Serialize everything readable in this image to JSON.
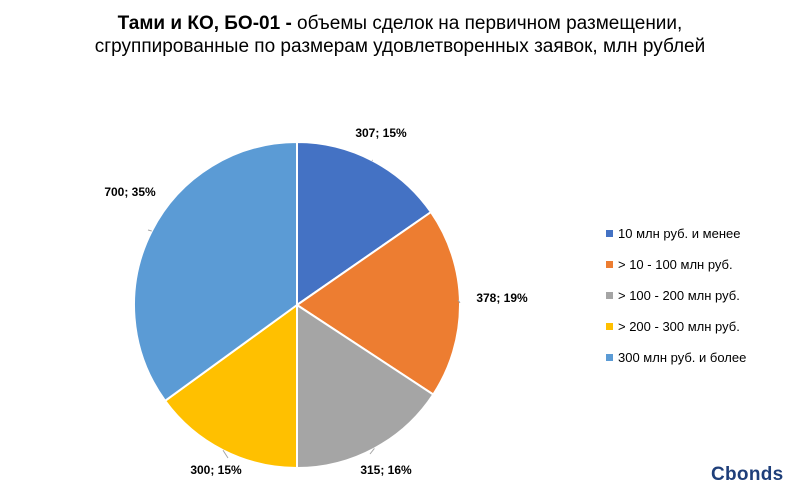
{
  "title": {
    "bold": "Тами и КО, БО-01 -",
    "line1_rest": " объемы сделок на первичном размещении,",
    "line2": "сгруппированные по размерам удовлетворенных заявок, млн рублей"
  },
  "brand": "Cbonds",
  "colors": [
    "#4472c4",
    "#ed7d31",
    "#a5a5a5",
    "#ffc000",
    "#5b9bd5"
  ],
  "chart_data": {
    "type": "pie",
    "categories": [
      "10 млн руб. и менее",
      "> 10 - 100 млн руб.",
      "> 100 - 200 млн руб.",
      "> 200 - 300 млн руб.",
      "300 млн руб. и более"
    ],
    "values": [
      307,
      378,
      315,
      300,
      700
    ],
    "percent_labels": [
      "15%",
      "19%",
      "16%",
      "15%",
      "35%"
    ],
    "data_labels": [
      "307; 15%",
      "378; 19%",
      "315; 16%",
      "300; 15%",
      "700; 35%"
    ],
    "legend_position": "right"
  }
}
